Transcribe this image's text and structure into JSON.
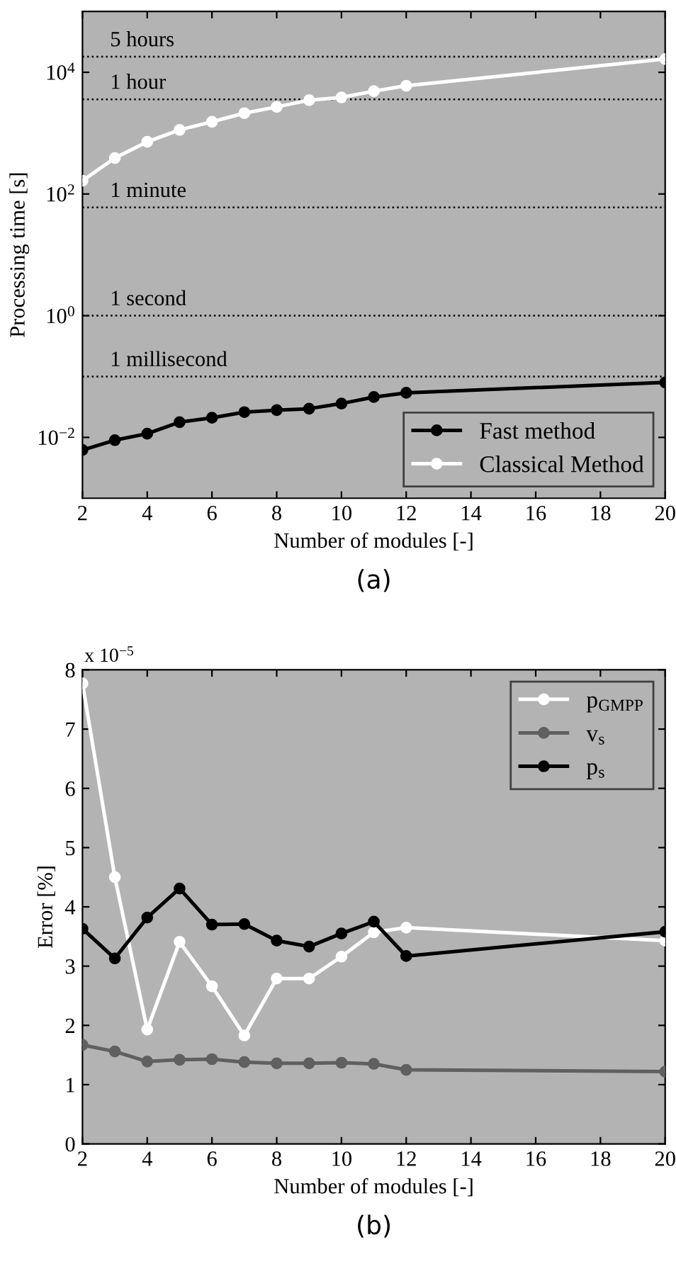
{
  "chart_data": [
    {
      "type": "line",
      "xlabel": "Number of modules [-]",
      "ylabel": "Processing time [s]",
      "log": true,
      "x": [
        2,
        3,
        4,
        5,
        6,
        7,
        8,
        9,
        10,
        11,
        12,
        20
      ],
      "series": [
        {
          "name": "Fast method",
          "color": "#000000",
          "values": [
            0.0062,
            0.009,
            0.0115,
            0.0178,
            0.021,
            0.026,
            0.028,
            0.0296,
            0.036,
            0.046,
            0.054,
            0.08
          ]
        },
        {
          "name": "Classical Method",
          "color": "#ffffff",
          "values": [
            165,
            390,
            720,
            1130,
            1540,
            2130,
            2700,
            3480,
            3860,
            4900,
            6000,
            16500
          ]
        }
      ],
      "xlim": [
        2,
        20
      ],
      "xticks": [
        2,
        4,
        6,
        8,
        10,
        12,
        14,
        16,
        18,
        20
      ],
      "ylim": [
        0.001,
        100000
      ],
      "yticks": [
        {
          "value": 0.01,
          "label": "10$^{−2}$"
        },
        {
          "value": 1,
          "label": "10$^{0}$"
        },
        {
          "value": 100,
          "label": "10$^{2}$"
        },
        {
          "value": 10000,
          "label": "10$^{4}$"
        }
      ],
      "ref_lines": [
        {
          "axis": "y",
          "value": 18000,
          "label": "5 hours",
          "color": "#000000",
          "line_style": "dotted"
        },
        {
          "axis": "y",
          "value": 3600,
          "label": "1 hour",
          "color": "#000000",
          "line_style": "dotted"
        },
        {
          "axis": "y",
          "value": 60,
          "label": "1 minute",
          "color": "#000000",
          "line_style": "dotted"
        },
        {
          "axis": "y",
          "value": 1,
          "label": "1 second",
          "color": "#000000",
          "line_style": "dotted"
        },
        {
          "axis": "y",
          "value": 0.1,
          "label": "1 millisecond",
          "color": "#000000",
          "line_style": "dotted"
        }
      ],
      "annotations": [
        "(a)"
      ],
      "legend": "bottom right",
      "marker": "circle",
      "line_style": "solid"
    },
    {
      "type": "line",
      "xlabel": "Number of modules [-]",
      "ylabel": "Error [%]",
      "x": [
        2,
        3,
        4,
        5,
        6,
        7,
        8,
        9,
        10,
        11,
        12,
        20
      ],
      "series": [
        {
          "name": "p$_{GMPP}$",
          "color": "#ffffff",
          "values": [
            7.77,
            4.5,
            1.93,
            3.41,
            2.66,
            1.83,
            2.79,
            2.79,
            3.16,
            3.57,
            3.65,
            3.43
          ]
        },
        {
          "name": "v$_{s}$",
          "color": "#606060",
          "values": [
            1.67,
            1.56,
            1.39,
            1.42,
            1.43,
            1.38,
            1.36,
            1.36,
            1.37,
            1.35,
            1.25,
            1.22
          ]
        },
        {
          "name": "p$_{s}$",
          "color": "#000000",
          "values": [
            3.63,
            3.13,
            3.82,
            4.31,
            3.7,
            3.71,
            3.43,
            3.33,
            3.55,
            3.75,
            3.17,
            3.58
          ]
        }
      ],
      "xlim": [
        2,
        20
      ],
      "xticks": [
        2,
        4,
        6,
        8,
        10,
        12,
        14,
        16,
        18,
        20
      ],
      "ylim": [
        0,
        8
      ],
      "yticks": [
        0,
        1,
        2,
        3,
        4,
        5,
        6,
        7,
        8
      ],
      "annotations": [
        "x 10$^{−5}$",
        "(b)"
      ],
      "legend": "top right",
      "marker": "circle",
      "line_style": "solid"
    }
  ]
}
